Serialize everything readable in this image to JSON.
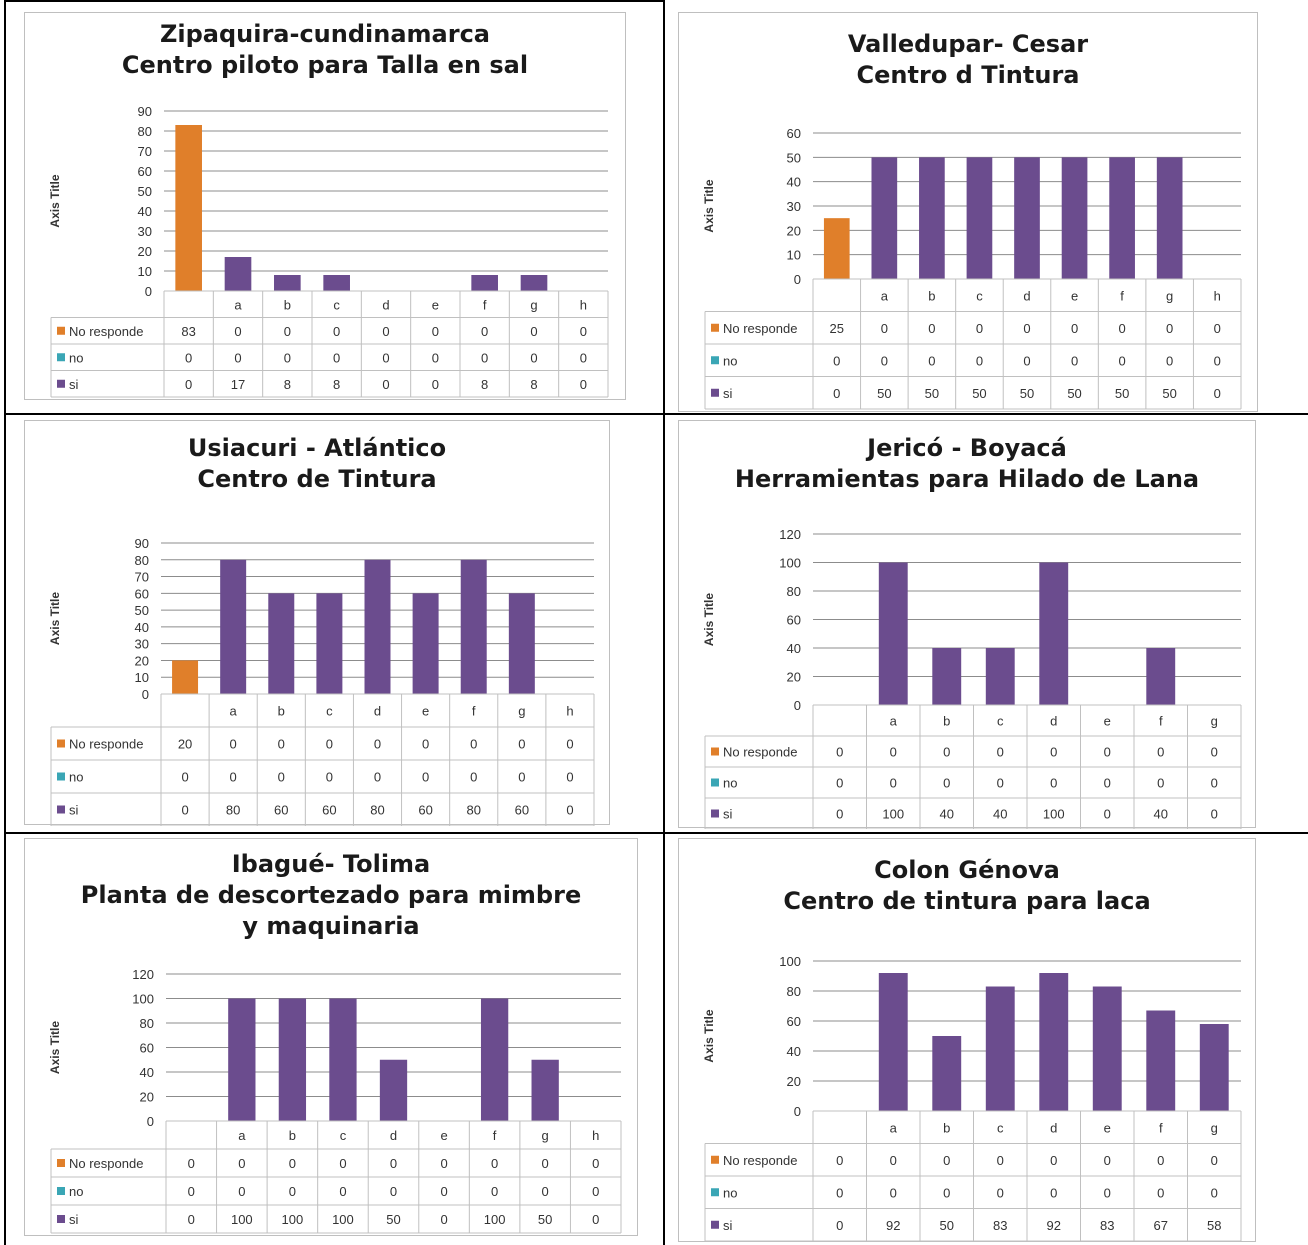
{
  "series_colors": {
    "No responde": "#e07f2a",
    "no": "#3aa6b5",
    "si": "#6b4c8e"
  },
  "chart_data": [
    {
      "type": "bar",
      "title": [
        "Zipaquira-cundinamarca",
        "Centro piloto para Talla en sal"
      ],
      "ylabel": "Axis Title",
      "ylim": [
        0,
        90
      ],
      "yticks": [
        0,
        10,
        20,
        30,
        40,
        50,
        60,
        70,
        80,
        90
      ],
      "categories": [
        "",
        "a",
        "b",
        "c",
        "d",
        "e",
        "f",
        "g",
        "h"
      ],
      "series": [
        {
          "name": "No responde",
          "values": [
            83,
            0,
            0,
            0,
            0,
            0,
            0,
            0,
            0
          ]
        },
        {
          "name": "no",
          "values": [
            0,
            0,
            0,
            0,
            0,
            0,
            0,
            0,
            0
          ]
        },
        {
          "name": "si",
          "values": [
            0,
            17,
            8,
            8,
            0,
            0,
            8,
            8,
            0
          ]
        }
      ],
      "grid": true,
      "legend": "data-table"
    },
    {
      "type": "bar",
      "title": [
        "Valledupar- Cesar",
        "Centro d Tintura"
      ],
      "ylabel": "Axis Title",
      "ylim": [
        0,
        60
      ],
      "yticks": [
        0,
        10,
        20,
        30,
        40,
        50,
        60
      ],
      "categories": [
        "",
        "a",
        "b",
        "c",
        "d",
        "e",
        "f",
        "g",
        "h"
      ],
      "series": [
        {
          "name": "No responde",
          "values": [
            25,
            0,
            0,
            0,
            0,
            0,
            0,
            0,
            0
          ]
        },
        {
          "name": "no",
          "values": [
            0,
            0,
            0,
            0,
            0,
            0,
            0,
            0,
            0
          ]
        },
        {
          "name": "si",
          "values": [
            0,
            50,
            50,
            50,
            50,
            50,
            50,
            50,
            0
          ]
        }
      ],
      "grid": true,
      "legend": "data-table"
    },
    {
      "type": "bar",
      "title": [
        "Usiacuri - Atlántico",
        "Centro de Tintura"
      ],
      "ylabel": "Axis Title",
      "ylim": [
        0,
        90
      ],
      "yticks": [
        0,
        10,
        20,
        30,
        40,
        50,
        60,
        70,
        80,
        90
      ],
      "categories": [
        "",
        "a",
        "b",
        "c",
        "d",
        "e",
        "f",
        "g",
        "h"
      ],
      "series": [
        {
          "name": "No responde",
          "values": [
            20,
            0,
            0,
            0,
            0,
            0,
            0,
            0,
            0
          ]
        },
        {
          "name": "no",
          "values": [
            0,
            0,
            0,
            0,
            0,
            0,
            0,
            0,
            0
          ]
        },
        {
          "name": "si",
          "values": [
            0,
            80,
            60,
            60,
            80,
            60,
            80,
            60,
            0
          ]
        }
      ],
      "grid": true,
      "legend": "data-table"
    },
    {
      "type": "bar",
      "title": [
        "Jericó - Boyacá",
        "Herramientas para Hilado de Lana"
      ],
      "ylabel": "Axis Title",
      "ylim": [
        0,
        120
      ],
      "yticks": [
        0,
        20,
        40,
        60,
        80,
        100,
        120
      ],
      "categories": [
        "",
        "a",
        "b",
        "c",
        "d",
        "e",
        "f",
        "g"
      ],
      "series": [
        {
          "name": "No responde",
          "values": [
            0,
            0,
            0,
            0,
            0,
            0,
            0,
            0
          ]
        },
        {
          "name": "no",
          "values": [
            0,
            0,
            0,
            0,
            0,
            0,
            0,
            0
          ]
        },
        {
          "name": "si",
          "values": [
            0,
            100,
            40,
            40,
            100,
            0,
            40,
            0
          ]
        }
      ],
      "grid": true,
      "legend": "data-table"
    },
    {
      "type": "bar",
      "title": [
        "Ibagué- Tolima",
        "Planta de descortezado para mimbre",
        "y maquinaria"
      ],
      "ylabel": "Axis Title",
      "ylim": [
        0,
        120
      ],
      "yticks": [
        0,
        20,
        40,
        60,
        80,
        100,
        120
      ],
      "categories": [
        "",
        "a",
        "b",
        "c",
        "d",
        "e",
        "f",
        "g",
        "h"
      ],
      "series": [
        {
          "name": "No responde",
          "values": [
            0,
            0,
            0,
            0,
            0,
            0,
            0,
            0,
            0
          ]
        },
        {
          "name": "no",
          "values": [
            0,
            0,
            0,
            0,
            0,
            0,
            0,
            0,
            0
          ]
        },
        {
          "name": "si",
          "values": [
            0,
            100,
            100,
            100,
            50,
            0,
            100,
            50,
            0
          ]
        }
      ],
      "grid": true,
      "legend": "data-table"
    },
    {
      "type": "bar",
      "title": [
        "Colon Génova",
        "Centro de tintura para laca"
      ],
      "ylabel": "Axis Title",
      "ylim": [
        0,
        100
      ],
      "yticks": [
        0,
        20,
        40,
        60,
        80,
        100
      ],
      "categories": [
        "",
        "a",
        "b",
        "c",
        "d",
        "e",
        "f",
        "g"
      ],
      "series": [
        {
          "name": "No responde",
          "values": [
            0,
            0,
            0,
            0,
            0,
            0,
            0,
            0
          ]
        },
        {
          "name": "no",
          "values": [
            0,
            0,
            0,
            0,
            0,
            0,
            0,
            0
          ]
        },
        {
          "name": "si",
          "values": [
            0,
            92,
            50,
            83,
            92,
            83,
            67,
            58
          ]
        }
      ],
      "grid": true,
      "legend": "data-table"
    }
  ]
}
